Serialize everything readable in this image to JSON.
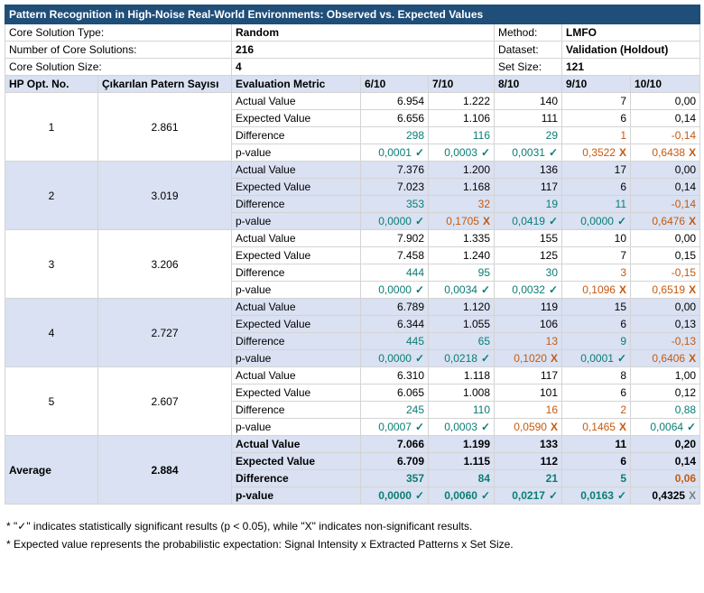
{
  "title": "Pattern Recognition in High-Noise Real-World Environments: Observed vs. Expected Values",
  "info": [
    {
      "label": "Core Solution Type:",
      "value": "Random",
      "label2": "Method:",
      "value2": "LMFO"
    },
    {
      "label": "Number of Core Solutions:",
      "value": "216",
      "label2": "Dataset:",
      "value2": "Validation (Holdout)"
    },
    {
      "label": "Core Solution Size:",
      "value": "4",
      "label2": "Set Size:",
      "value2": "121"
    }
  ],
  "headers": [
    "HP Opt. No.",
    "Çıkarılan Patern Sayısı",
    "Evaluation Metric",
    "6/10",
    "7/10",
    "8/10",
    "9/10",
    "10/10"
  ],
  "groups": [
    {
      "no": "1",
      "count": "2.861",
      "rows": [
        {
          "metric": "Actual Value",
          "cells": [
            {
              "v": "6.954"
            },
            {
              "v": "1.222"
            },
            {
              "v": "140"
            },
            {
              "v": "7"
            },
            {
              "v": "0,00"
            }
          ]
        },
        {
          "metric": "Expected Value",
          "cells": [
            {
              "v": "6.656"
            },
            {
              "v": "1.106"
            },
            {
              "v": "111"
            },
            {
              "v": "6"
            },
            {
              "v": "0,14"
            }
          ]
        },
        {
          "metric": "Difference",
          "cells": [
            {
              "v": "298",
              "c": "green"
            },
            {
              "v": "116",
              "c": "green"
            },
            {
              "v": "29",
              "c": "green"
            },
            {
              "v": "1",
              "c": "orange"
            },
            {
              "v": "-0,14",
              "c": "orange"
            }
          ]
        },
        {
          "metric": "p-value",
          "cells": [
            {
              "v": "0,0001",
              "c": "green",
              "m": "✓"
            },
            {
              "v": "0,0003",
              "c": "green",
              "m": "✓"
            },
            {
              "v": "0,0031",
              "c": "green",
              "m": "✓"
            },
            {
              "v": "0,3522",
              "c": "orange",
              "m": "X"
            },
            {
              "v": "0,6438",
              "c": "orange",
              "m": "X"
            }
          ]
        }
      ]
    },
    {
      "no": "2",
      "count": "3.019",
      "rows": [
        {
          "metric": "Actual Value",
          "cells": [
            {
              "v": "7.376"
            },
            {
              "v": "1.200"
            },
            {
              "v": "136"
            },
            {
              "v": "17"
            },
            {
              "v": "0,00"
            }
          ]
        },
        {
          "metric": "Expected Value",
          "cells": [
            {
              "v": "7.023"
            },
            {
              "v": "1.168"
            },
            {
              "v": "117"
            },
            {
              "v": "6"
            },
            {
              "v": "0,14"
            }
          ]
        },
        {
          "metric": "Difference",
          "cells": [
            {
              "v": "353",
              "c": "green"
            },
            {
              "v": "32",
              "c": "orange"
            },
            {
              "v": "19",
              "c": "green"
            },
            {
              "v": "11",
              "c": "green"
            },
            {
              "v": "-0,14",
              "c": "orange"
            }
          ]
        },
        {
          "metric": "p-value",
          "cells": [
            {
              "v": "0,0000",
              "c": "green",
              "m": "✓"
            },
            {
              "v": "0,1705",
              "c": "orange",
              "m": "X"
            },
            {
              "v": "0,0419",
              "c": "green",
              "m": "✓"
            },
            {
              "v": "0,0000",
              "c": "green",
              "m": "✓"
            },
            {
              "v": "0,6476",
              "c": "orange",
              "m": "X"
            }
          ]
        }
      ]
    },
    {
      "no": "3",
      "count": "3.206",
      "rows": [
        {
          "metric": "Actual Value",
          "cells": [
            {
              "v": "7.902"
            },
            {
              "v": "1.335"
            },
            {
              "v": "155"
            },
            {
              "v": "10"
            },
            {
              "v": "0,00"
            }
          ]
        },
        {
          "metric": "Expected Value",
          "cells": [
            {
              "v": "7.458"
            },
            {
              "v": "1.240"
            },
            {
              "v": "125"
            },
            {
              "v": "7"
            },
            {
              "v": "0,15"
            }
          ]
        },
        {
          "metric": "Difference",
          "cells": [
            {
              "v": "444",
              "c": "green"
            },
            {
              "v": "95",
              "c": "green"
            },
            {
              "v": "30",
              "c": "green"
            },
            {
              "v": "3",
              "c": "orange"
            },
            {
              "v": "-0,15",
              "c": "orange"
            }
          ]
        },
        {
          "metric": "p-value",
          "cells": [
            {
              "v": "0,0000",
              "c": "green",
              "m": "✓"
            },
            {
              "v": "0,0034",
              "c": "green",
              "m": "✓"
            },
            {
              "v": "0,0032",
              "c": "green",
              "m": "✓"
            },
            {
              "v": "0,1096",
              "c": "orange",
              "m": "X"
            },
            {
              "v": "0,6519",
              "c": "orange",
              "m": "X"
            }
          ]
        }
      ]
    },
    {
      "no": "4",
      "count": "2.727",
      "rows": [
        {
          "metric": "Actual Value",
          "cells": [
            {
              "v": "6.789"
            },
            {
              "v": "1.120"
            },
            {
              "v": "119"
            },
            {
              "v": "15"
            },
            {
              "v": "0,00"
            }
          ]
        },
        {
          "metric": "Expected Value",
          "cells": [
            {
              "v": "6.344"
            },
            {
              "v": "1.055"
            },
            {
              "v": "106"
            },
            {
              "v": "6"
            },
            {
              "v": "0,13"
            }
          ]
        },
        {
          "metric": "Difference",
          "cells": [
            {
              "v": "445",
              "c": "green"
            },
            {
              "v": "65",
              "c": "green"
            },
            {
              "v": "13",
              "c": "orange"
            },
            {
              "v": "9",
              "c": "green"
            },
            {
              "v": "-0,13",
              "c": "orange"
            }
          ]
        },
        {
          "metric": "p-value",
          "cells": [
            {
              "v": "0,0000",
              "c": "green",
              "m": "✓"
            },
            {
              "v": "0,0218",
              "c": "green",
              "m": "✓"
            },
            {
              "v": "0,1020",
              "c": "orange",
              "m": "X"
            },
            {
              "v": "0,0001",
              "c": "green",
              "m": "✓"
            },
            {
              "v": "0,6406",
              "c": "orange",
              "m": "X"
            }
          ]
        }
      ]
    },
    {
      "no": "5",
      "count": "2.607",
      "rows": [
        {
          "metric": "Actual Value",
          "cells": [
            {
              "v": "6.310"
            },
            {
              "v": "1.118"
            },
            {
              "v": "117"
            },
            {
              "v": "8"
            },
            {
              "v": "1,00"
            }
          ]
        },
        {
          "metric": "Expected Value",
          "cells": [
            {
              "v": "6.065"
            },
            {
              "v": "1.008"
            },
            {
              "v": "101"
            },
            {
              "v": "6"
            },
            {
              "v": "0,12"
            }
          ]
        },
        {
          "metric": "Difference",
          "cells": [
            {
              "v": "245",
              "c": "green"
            },
            {
              "v": "110",
              "c": "green"
            },
            {
              "v": "16",
              "c": "orange"
            },
            {
              "v": "2",
              "c": "orange"
            },
            {
              "v": "0,88",
              "c": "green"
            }
          ]
        },
        {
          "metric": "p-value",
          "cells": [
            {
              "v": "0,0007",
              "c": "green",
              "m": "✓"
            },
            {
              "v": "0,0003",
              "c": "green",
              "m": "✓"
            },
            {
              "v": "0,0590",
              "c": "orange",
              "m": "X"
            },
            {
              "v": "0,1465",
              "c": "orange",
              "m": "X"
            },
            {
              "v": "0,0064",
              "c": "green",
              "m": "✓"
            }
          ]
        }
      ]
    }
  ],
  "average": {
    "label": "Average",
    "count": "2.884",
    "rows": [
      {
        "metric": "Actual Value",
        "cells": [
          {
            "v": "7.066"
          },
          {
            "v": "1.199"
          },
          {
            "v": "133"
          },
          {
            "v": "11"
          },
          {
            "v": "0,20"
          }
        ]
      },
      {
        "metric": "Expected Value",
        "cells": [
          {
            "v": "6.709"
          },
          {
            "v": "1.115"
          },
          {
            "v": "112"
          },
          {
            "v": "6"
          },
          {
            "v": "0,14"
          }
        ]
      },
      {
        "metric": "Difference",
        "cells": [
          {
            "v": "357",
            "c": "green"
          },
          {
            "v": "84",
            "c": "green"
          },
          {
            "v": "21",
            "c": "green"
          },
          {
            "v": "5",
            "c": "green"
          },
          {
            "v": "0,06",
            "c": "orange"
          }
        ]
      },
      {
        "metric": "p-value",
        "cells": [
          {
            "v": "0,0000",
            "c": "green",
            "m": "✓"
          },
          {
            "v": "0,0060",
            "c": "green",
            "m": "✓"
          },
          {
            "v": "0,0217",
            "c": "green",
            "m": "✓"
          },
          {
            "v": "0,0163",
            "c": "green",
            "m": "✓"
          },
          {
            "v": "0,4325",
            "c": "black",
            "m": "X"
          }
        ]
      }
    ]
  },
  "notes": [
    "* \"✓\" indicates statistically significant results (p < 0.05), while \"X\" indicates non-significant results.",
    "* Expected value represents the probabilistic expectation: Signal Intensity x Extracted Patterns x Set Size."
  ]
}
